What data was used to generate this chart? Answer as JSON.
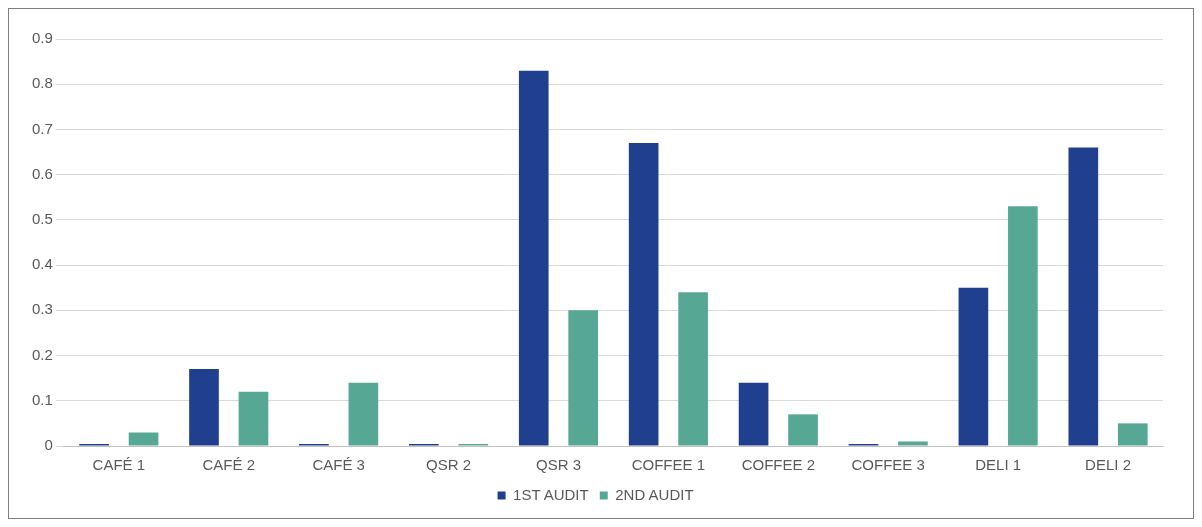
{
  "chart_data": {
    "type": "bar",
    "categories": [
      "CAFÉ 1",
      "CAFÉ 2",
      "CAFÉ 3",
      "QSR 2",
      "QSR 3",
      "COFFEE 1",
      "COFFEE 2",
      "COFFEE 3",
      "DELI 1",
      "DELI 2"
    ],
    "series": [
      {
        "name": "1ST AUDIT",
        "color": "#213f8f",
        "values": [
          0,
          0.17,
          0,
          0,
          0.83,
          0.67,
          0.14,
          0,
          0.35,
          0.66
        ]
      },
      {
        "name": "2ND AUDIT",
        "color": "#56a895",
        "values": [
          0.03,
          0.12,
          0.14,
          0,
          0.3,
          0.34,
          0.07,
          0.01,
          0.53,
          0.05
        ]
      }
    ],
    "ylim": [
      0,
      0.9
    ],
    "yticks": [
      0,
      0.1,
      0.2,
      0.3,
      0.4,
      0.5,
      0.6,
      0.7,
      0.8,
      0.9
    ],
    "grid": "y",
    "legend": "bottom"
  }
}
